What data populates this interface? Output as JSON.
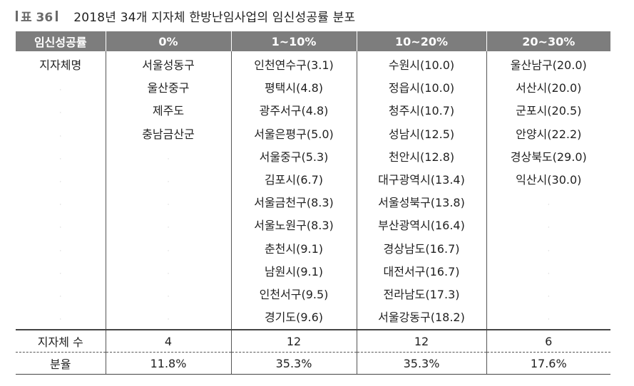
{
  "title": {
    "label": "표 36",
    "text": "2018년 34개 지자체 한방난임사업의 임신성공률 분포"
  },
  "table": {
    "headers": [
      "임신성공률",
      "0%",
      "1~10%",
      "10~20%",
      "20~30%"
    ],
    "row_label": "지자체명",
    "columns": [
      [
        "서울성동구",
        "울산중구",
        "제주도",
        "충남금산군"
      ],
      [
        "인천연수구(3.1)",
        "평택시(4.8)",
        "광주서구(4.8)",
        "서울은평구(5.0)",
        "서울중구(5.3)",
        "김포시(6.7)",
        "서울금천구(8.3)",
        "서울노원구(8.3)",
        "춘천시(9.1)",
        "남원시(9.1)",
        "인천서구(9.5)",
        "경기도(9.6)"
      ],
      [
        "수원시(10.0)",
        "정읍시(10.0)",
        "청주시(10.7)",
        "성남시(12.5)",
        "천안시(12.8)",
        "대구광역시(13.4)",
        "서울성북구(13.8)",
        "부산광역시(16.4)",
        "경상남도(16.7)",
        "대전서구(16.7)",
        "전라남도(17.3)",
        "서울강동구(18.2)"
      ],
      [
        "울산남구(20.0)",
        "서산시(20.0)",
        "군포시(20.5)",
        "안양시(22.2)",
        "경상북도(29.0)",
        "익산시(30.0)"
      ]
    ],
    "count_row": {
      "label": "지자체 수",
      "values": [
        "4",
        "12",
        "12",
        "6"
      ]
    },
    "ratio_row": {
      "label": "분율",
      "values": [
        "11.8%",
        "35.3%",
        "35.3%",
        "17.6%"
      ]
    }
  }
}
